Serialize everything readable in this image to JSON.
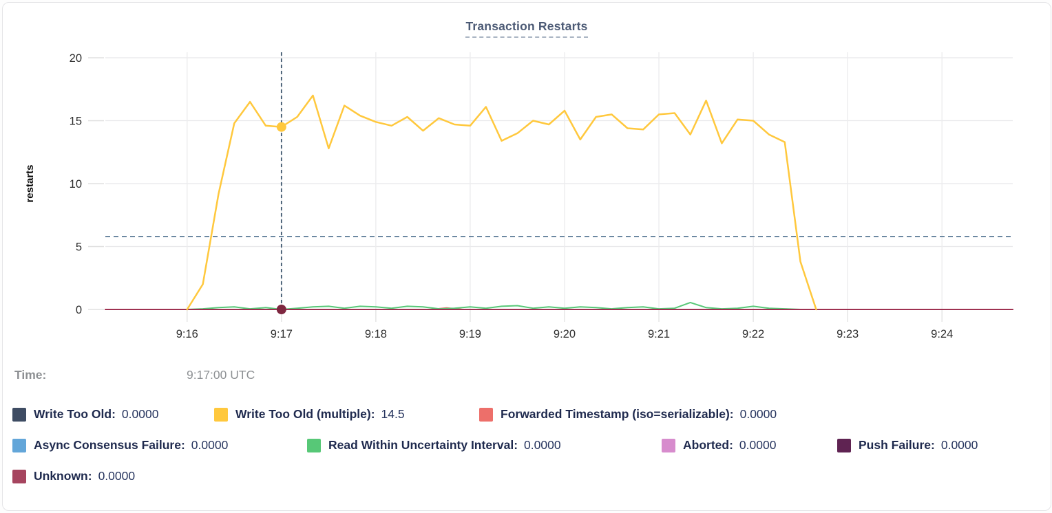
{
  "tooltip": {
    "label": "Time:",
    "value": "9:17:00 UTC"
  },
  "legend": {
    "rows": [
      [
        {
          "label": "Write Too Old:",
          "value": "0.0000",
          "color": "#3e4c63"
        },
        {
          "label": "Write Too Old (multiple):",
          "value": "14.5",
          "color": "#ffc83d"
        },
        {
          "label": "Forwarded Timestamp (iso=serializable):",
          "value": "0.0000",
          "color": "#ed6f6a"
        }
      ],
      [
        {
          "label": "Async Consensus Failure:",
          "value": "0.0000",
          "color": "#63a6d9"
        },
        {
          "label": "Read Within Uncertainty Interval:",
          "value": "0.0000",
          "color": "#57c877"
        },
        {
          "label": "Aborted:",
          "value": "0.0000",
          "color": "#d78ccd"
        },
        {
          "label": "Push Failure:",
          "value": "0.0000",
          "color": "#5f2352"
        }
      ],
      [
        {
          "label": "Unknown:",
          "value": "0.0000",
          "color": "#a6455f"
        }
      ]
    ]
  },
  "chart_data": {
    "type": "line",
    "title": "Transaction Restarts",
    "ylabel": "restarts",
    "ylim": [
      0,
      20
    ],
    "yticks": [
      0,
      5,
      10,
      15,
      20
    ],
    "xtick_labels": [
      "9:16",
      "9:17",
      "9:18",
      "9:19",
      "9:20",
      "9:21",
      "9:22",
      "9:23",
      "9:24"
    ],
    "xtick_seconds": [
      60,
      120,
      180,
      240,
      300,
      360,
      420,
      480,
      540
    ],
    "x_unit": "seconds after 9:15:00 UTC",
    "x_domain": [
      8,
      585
    ],
    "grid": true,
    "legend_position": "bottom",
    "threshold_line": {
      "value": 5.8,
      "style": "dashed"
    },
    "hover": {
      "t_seconds": 120,
      "tick_label": "9:17",
      "time_label": "9:17:00 UTC"
    },
    "hover_dots": [
      {
        "series": "Write Too Old (multiple)",
        "value": 14.5
      },
      {
        "series": "Unknown",
        "value": 0
      }
    ],
    "series": [
      {
        "name": "Write Too Old",
        "color": "#3e4c63",
        "width": 1.5,
        "points": [
          [
            8,
            0
          ],
          [
            585,
            0
          ]
        ]
      },
      {
        "name": "Async Consensus Failure",
        "color": "#63a6d9",
        "width": 1.5,
        "points": [
          [
            8,
            0
          ],
          [
            585,
            0
          ]
        ]
      },
      {
        "name": "Aborted",
        "color": "#d78ccd",
        "width": 1.5,
        "points": [
          [
            8,
            0
          ],
          [
            585,
            0
          ]
        ]
      },
      {
        "name": "Push Failure",
        "color": "#5f2352",
        "width": 1.5,
        "points": [
          [
            8,
            0
          ],
          [
            585,
            0
          ]
        ]
      },
      {
        "name": "Forwarded Timestamp (iso=serializable)",
        "color": "#ed6f6a",
        "width": 2,
        "points": [
          [
            8,
            0
          ],
          [
            215,
            0
          ],
          [
            225,
            0.12
          ],
          [
            235,
            0
          ],
          [
            585,
            0
          ]
        ]
      },
      {
        "name": "Read Within Uncertainty Interval",
        "color": "#57c877",
        "width": 2,
        "points": [
          [
            60,
            0
          ],
          [
            70,
            0.05
          ],
          [
            80,
            0.15
          ],
          [
            90,
            0.2
          ],
          [
            100,
            0.05
          ],
          [
            110,
            0.15
          ],
          [
            120,
            0
          ],
          [
            130,
            0.1
          ],
          [
            140,
            0.2
          ],
          [
            150,
            0.25
          ],
          [
            160,
            0.1
          ],
          [
            170,
            0.25
          ],
          [
            180,
            0.2
          ],
          [
            190,
            0.1
          ],
          [
            200,
            0.25
          ],
          [
            210,
            0.2
          ],
          [
            220,
            0.05
          ],
          [
            230,
            0.1
          ],
          [
            240,
            0.2
          ],
          [
            250,
            0.1
          ],
          [
            260,
            0.25
          ],
          [
            270,
            0.3
          ],
          [
            280,
            0.1
          ],
          [
            290,
            0.2
          ],
          [
            300,
            0.1
          ],
          [
            310,
            0.2
          ],
          [
            320,
            0.15
          ],
          [
            330,
            0.05
          ],
          [
            340,
            0.15
          ],
          [
            350,
            0.2
          ],
          [
            360,
            0.05
          ],
          [
            370,
            0.1
          ],
          [
            380,
            0.55
          ],
          [
            390,
            0.15
          ],
          [
            400,
            0.05
          ],
          [
            410,
            0.1
          ],
          [
            420,
            0.25
          ],
          [
            430,
            0.1
          ],
          [
            440,
            0.05
          ],
          [
            450,
            0
          ],
          [
            460,
            0
          ]
        ]
      },
      {
        "name": "Unknown",
        "color": "#9e3151",
        "width": 2,
        "points": [
          [
            8,
            0
          ],
          [
            585,
            0
          ]
        ]
      },
      {
        "name": "Write Too Old (multiple)",
        "color": "#ffc83d",
        "width": 2.5,
        "points": [
          [
            60,
            0
          ],
          [
            70,
            2
          ],
          [
            80,
            9.2
          ],
          [
            90,
            14.8
          ],
          [
            100,
            16.5
          ],
          [
            110,
            14.6
          ],
          [
            120,
            14.5
          ],
          [
            130,
            15.3
          ],
          [
            140,
            17
          ],
          [
            150,
            12.8
          ],
          [
            160,
            16.2
          ],
          [
            170,
            15.4
          ],
          [
            180,
            14.9
          ],
          [
            190,
            14.6
          ],
          [
            200,
            15.3
          ],
          [
            210,
            14.2
          ],
          [
            220,
            15.2
          ],
          [
            230,
            14.7
          ],
          [
            240,
            14.6
          ],
          [
            250,
            16.1
          ],
          [
            260,
            13.4
          ],
          [
            270,
            14
          ],
          [
            280,
            15
          ],
          [
            290,
            14.7
          ],
          [
            300,
            15.8
          ],
          [
            310,
            13.5
          ],
          [
            320,
            15.3
          ],
          [
            330,
            15.5
          ],
          [
            340,
            14.4
          ],
          [
            350,
            14.3
          ],
          [
            360,
            15.5
          ],
          [
            370,
            15.6
          ],
          [
            380,
            13.9
          ],
          [
            390,
            16.6
          ],
          [
            400,
            13.2
          ],
          [
            410,
            15.1
          ],
          [
            420,
            15
          ],
          [
            430,
            13.9
          ],
          [
            440,
            13.3
          ],
          [
            450,
            3.8
          ],
          [
            460,
            0
          ]
        ]
      }
    ]
  }
}
